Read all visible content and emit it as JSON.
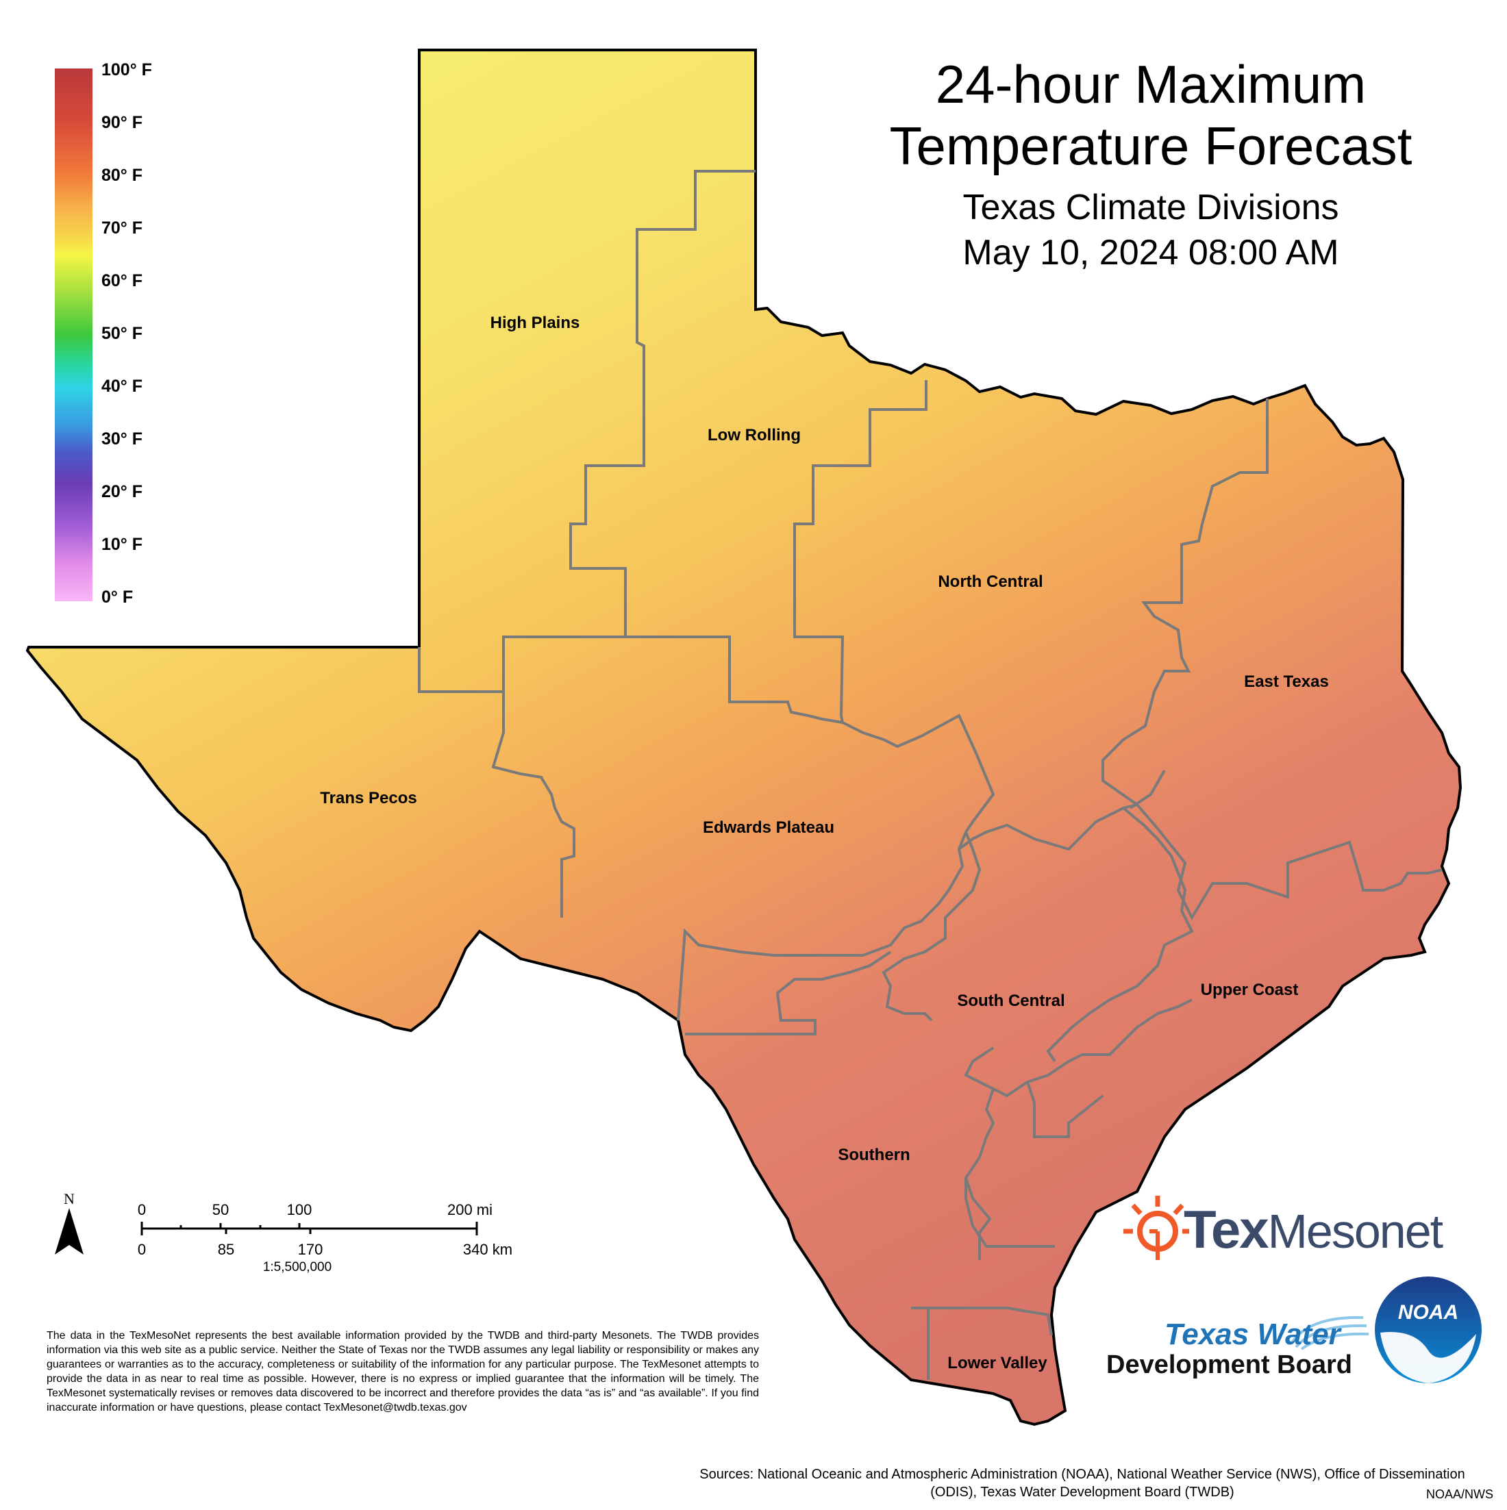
{
  "title_line1": "24-hour Maximum",
  "title_line2": "Temperature Forecast",
  "subtitle_line1": "Texas Climate Divisions",
  "subtitle_line2": "May 10, 2024 08:00 AM",
  "legend": {
    "labels": [
      "100° F",
      "90° F",
      "80° F",
      "70° F",
      "60° F",
      "50° F",
      "40° F",
      "30° F",
      "20° F",
      "10° F",
      "0° F"
    ]
  },
  "regions": {
    "high_plains": "High Plains",
    "low_rolling": "Low Rolling",
    "north_central": "North Central",
    "east_texas": "East Texas",
    "trans_pecos": "Trans Pecos",
    "edwards_plateau": "Edwards Plateau",
    "south_central": "South Central",
    "upper_coast": "Upper Coast",
    "southern": "Southern",
    "lower_valley": "Lower Valley"
  },
  "scale": {
    "north": "N",
    "mi_labels": [
      "0",
      "50",
      "100",
      "200 mi"
    ],
    "km_labels": [
      "0",
      "85",
      "170",
      "340 km"
    ],
    "ratio": "1:5,500,000"
  },
  "logos": {
    "texmesonet_tex": "Tex",
    "texmesonet_rest": "Mesonet",
    "twdb_line1": "Texas Water",
    "twdb_line2": "Development Board",
    "noaa": "NOAA"
  },
  "disclaimer": "The data in the TexMesoNet represents the best available information provided by the TWDB and third-party Mesonets. The TWDB provides information via this web site as a public service. Neither the State of Texas nor the TWDB assumes any legal liability or responsibility or makes any guarantees or warranties as to the accuracy, completeness or suitability of the information for any particular purpose. The TexMesonet attempts to provide the data in as near to real time as possible. However, there is no express or implied guarantee that the information will be timely. The TexMesonet systematically revises or removes data discovered to be incorrect and therefore provides the data “as is” and “as available”. If you find inaccurate information or have questions, please contact TexMesonet@twdb.texas.gov",
  "sources": "Sources: National Oceanic and Atmospheric Administration (NOAA), National Weather Service (NWS), Office of Dissemination (ODIS), Texas Water Development Board (TWDB)",
  "credit": "NOAA/NWS",
  "colors": {
    "north": "#f7f06a",
    "central": "#f7c95a",
    "south": "#e07a62",
    "outline": "#000000",
    "division": "#7a7a7a"
  }
}
